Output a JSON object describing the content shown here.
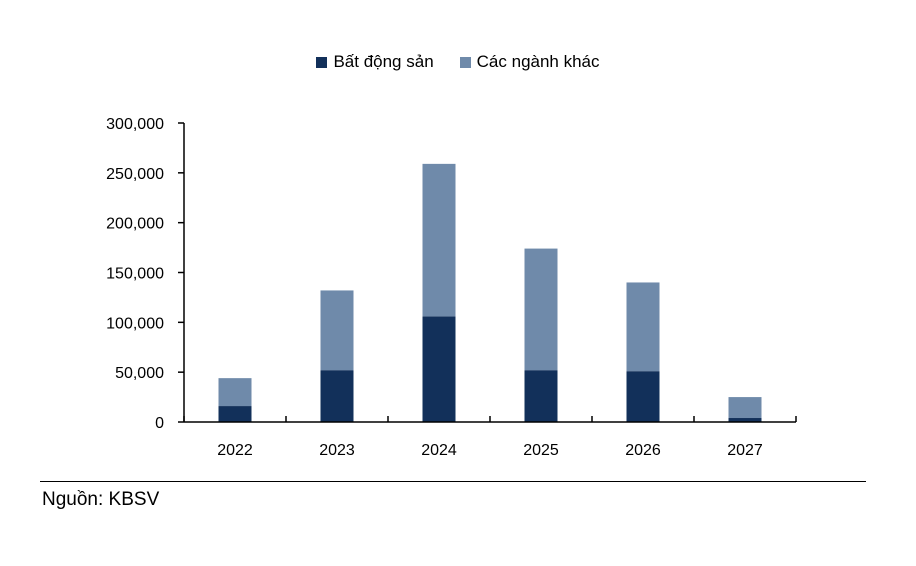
{
  "chart_data": {
    "type": "bar",
    "stacked": true,
    "categories": [
      "2022",
      "2023",
      "2024",
      "2025",
      "2026",
      "2027"
    ],
    "series": [
      {
        "name": "Bất động sản",
        "color": "#12305a",
        "values": [
          16000,
          52000,
          106000,
          52000,
          51000,
          4000
        ]
      },
      {
        "name": "Các ngành khác",
        "color": "#6f8aaa",
        "values": [
          28000,
          80000,
          153000,
          122000,
          89000,
          21000
        ]
      }
    ],
    "ylim": [
      0,
      300000
    ],
    "yticks": [
      0,
      50000,
      100000,
      150000,
      200000,
      250000,
      300000
    ],
    "ytick_labels": [
      "0",
      "50,000",
      "100,000",
      "150,000",
      "200,000",
      "250,000",
      "300,000"
    ],
    "legend_position": "top-center",
    "grid": false
  },
  "source": "Nguồn: KBSV"
}
